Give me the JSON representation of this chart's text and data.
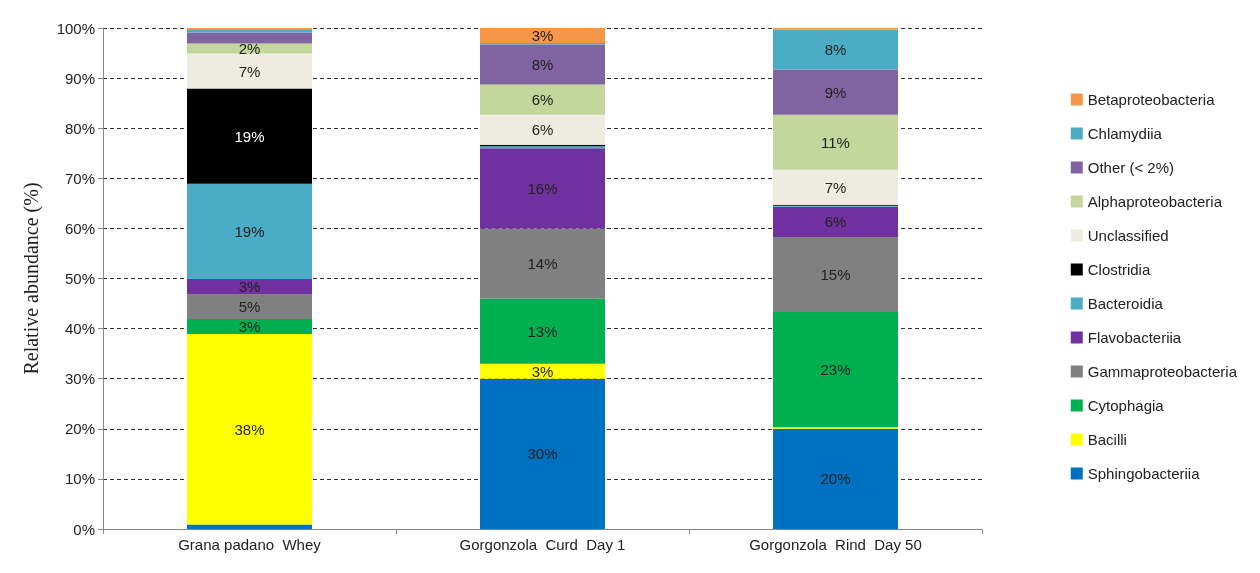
{
  "chart_data": {
    "type": "bar",
    "stacked": true,
    "ylabel": "Relative abundance (%)",
    "categories": [
      "Grana padano  Whey",
      "Gorgonzola  Curd  Day 1",
      "Gorgonzola  Rind  Day 50"
    ],
    "ylim": [
      0,
      100
    ],
    "yticks": [
      {
        "value": 0,
        "label": "0%"
      },
      {
        "value": 10,
        "label": "10%"
      },
      {
        "value": 20,
        "label": "20%"
      },
      {
        "value": 30,
        "label": "30%"
      },
      {
        "value": 40,
        "label": "40%"
      },
      {
        "value": 50,
        "label": "50%"
      },
      {
        "value": 60,
        "label": "60%"
      },
      {
        "value": 70,
        "label": "70%"
      },
      {
        "value": 80,
        "label": "80%"
      },
      {
        "value": 90,
        "label": "90%"
      },
      {
        "value": 100,
        "label": "100%"
      }
    ],
    "grid": "y",
    "legend": "right",
    "series": [
      {
        "name": "Sphingobacteriia",
        "color": "#0070c0",
        "values": [
          0.9,
          30,
          20
        ],
        "value_labels": [
          null,
          "30%",
          "20%"
        ]
      },
      {
        "name": "Bacilli",
        "color": "#ffff00",
        "values": [
          38,
          3,
          0.3
        ],
        "value_labels": [
          "38%",
          "3%",
          null
        ]
      },
      {
        "name": "Cytophagia",
        "color": "#00b050",
        "values": [
          3,
          13,
          23
        ],
        "value_labels": [
          "3%",
          "13%",
          "23%"
        ]
      },
      {
        "name": "Gammaproteobacteria",
        "color": "#808080",
        "values": [
          5,
          14,
          15
        ],
        "value_labels": [
          "5%",
          "14%",
          "15%"
        ]
      },
      {
        "name": "Flavobacteriia",
        "color": "#7030a0",
        "values": [
          3,
          16,
          6
        ],
        "value_labels": [
          "3%",
          "16%",
          "6%"
        ]
      },
      {
        "name": "Bacteroidia",
        "color": "#4bacc6",
        "values": [
          19,
          0.4,
          0.2
        ],
        "value_labels": [
          "19%",
          null,
          null
        ]
      },
      {
        "name": "Clostridia",
        "color": "#000000",
        "values": [
          19,
          0.3,
          0.2
        ],
        "value_labels": [
          "19%",
          null,
          null
        ]
      },
      {
        "name": "Unclassified",
        "color": "#eeece1",
        "values": [
          7,
          6,
          7
        ],
        "value_labels": [
          "7%",
          "6%",
          "7%"
        ]
      },
      {
        "name": "Alphaproteobacteria",
        "color": "#c3d69b",
        "values": [
          2,
          6,
          11
        ],
        "value_labels": [
          "2%",
          "6%",
          "11%"
        ]
      },
      {
        "name": "Other (< 2%)",
        "color": "#8064a2",
        "values": [
          2.2,
          8,
          9
        ],
        "value_labels": [
          null,
          "8%",
          "9%"
        ]
      },
      {
        "name": "Chlamydiia",
        "color": "#4aacc5",
        "values": [
          0.5,
          0.3,
          8
        ],
        "value_labels": [
          null,
          null,
          "8%"
        ]
      },
      {
        "name": "Betaproteobacteria",
        "color": "#f79646",
        "values": [
          0.4,
          3,
          0.3
        ],
        "value_labels": [
          null,
          "3%",
          null
        ]
      }
    ]
  }
}
